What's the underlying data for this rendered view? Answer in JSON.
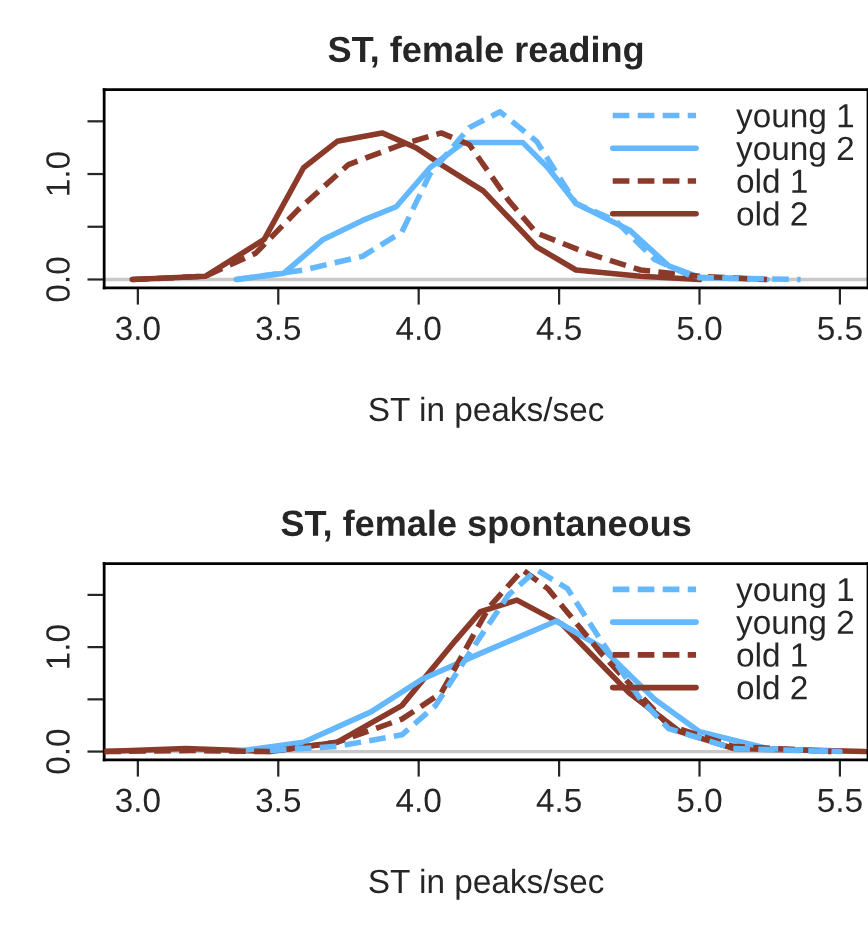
{
  "chart_data": [
    {
      "type": "line",
      "title": "ST, female reading",
      "xlabel": "ST in peaks/sec",
      "xlim": [
        2.88,
        5.6
      ],
      "ylim": [
        -0.08,
        1.8
      ],
      "xticks": [
        {
          "value": 3.0,
          "label": "3.0"
        },
        {
          "value": 3.5,
          "label": "3.5"
        },
        {
          "value": 4.0,
          "label": "4.0"
        },
        {
          "value": 4.5,
          "label": "4.5"
        },
        {
          "value": 5.0,
          "label": "5.0"
        },
        {
          "value": 5.5,
          "label": "5.5"
        }
      ],
      "yticks": [
        {
          "value": 0,
          "label": "0.0"
        },
        {
          "value": 0.5,
          "label": null
        },
        {
          "value": 1.0,
          "label": "1.0"
        },
        {
          "value": 1.5,
          "label": null
        }
      ],
      "legend": "top right",
      "grid": false,
      "ref_lines": [
        {
          "axis": "y",
          "value": 0,
          "label": null,
          "color": "#c8c8c8"
        }
      ],
      "series": [
        {
          "name": "young 1",
          "color": "#63b8ff",
          "line_style": "dashed",
          "x": [
            3.35,
            3.59,
            3.8,
            3.94,
            4.04,
            4.18,
            4.29,
            4.42,
            4.56,
            4.7,
            4.84,
            4.98,
            5.36
          ],
          "values": [
            0.0,
            0.09,
            0.22,
            0.45,
            1.0,
            1.44,
            1.59,
            1.31,
            0.72,
            0.56,
            0.19,
            0.02,
            0.0
          ]
        },
        {
          "name": "young 2",
          "color": "#63b8ff",
          "line_style": "solid",
          "x": [
            3.35,
            3.52,
            3.66,
            3.8,
            3.92,
            4.04,
            4.16,
            4.37,
            4.46,
            4.56,
            4.75,
            4.89,
            5.0,
            5.24
          ],
          "values": [
            0.0,
            0.06,
            0.38,
            0.56,
            0.69,
            1.06,
            1.3,
            1.3,
            1.06,
            0.72,
            0.47,
            0.13,
            0.02,
            0.0
          ]
        },
        {
          "name": "old 1",
          "color": "#8b3a2a",
          "line_style": "dashed",
          "x": [
            2.98,
            3.24,
            3.42,
            3.57,
            3.75,
            3.94,
            4.08,
            4.18,
            4.32,
            4.42,
            4.6,
            4.79,
            5.0,
            5.24
          ],
          "values": [
            0.0,
            0.03,
            0.25,
            0.66,
            1.09,
            1.28,
            1.39,
            1.28,
            0.75,
            0.44,
            0.25,
            0.09,
            0.03,
            0.0
          ]
        },
        {
          "name": "old 2",
          "color": "#8b3a2a",
          "line_style": "solid",
          "x": [
            2.98,
            3.24,
            3.45,
            3.59,
            3.71,
            3.87,
            3.99,
            4.08,
            4.23,
            4.42,
            4.56,
            4.79,
            5.0
          ],
          "values": [
            0.0,
            0.03,
            0.38,
            1.06,
            1.31,
            1.39,
            1.25,
            1.09,
            0.84,
            0.31,
            0.09,
            0.03,
            0.0
          ]
        }
      ]
    },
    {
      "type": "line",
      "title": "ST, female spontaneous",
      "xlabel": "ST in peaks/sec",
      "xlim": [
        2.88,
        5.6
      ],
      "ylim": [
        -0.08,
        1.8
      ],
      "xticks": [
        {
          "value": 3.0,
          "label": "3.0"
        },
        {
          "value": 3.5,
          "label": "3.5"
        },
        {
          "value": 4.0,
          "label": "4.0"
        },
        {
          "value": 4.5,
          "label": "4.5"
        },
        {
          "value": 5.0,
          "label": "5.0"
        },
        {
          "value": 5.5,
          "label": "5.5"
        }
      ],
      "yticks": [
        {
          "value": 0,
          "label": "0.0"
        },
        {
          "value": 0.5,
          "label": null
        },
        {
          "value": 1.0,
          "label": "1.0"
        },
        {
          "value": 1.5,
          "label": null
        }
      ],
      "legend": "top right",
      "grid": false,
      "ref_lines": [
        {
          "axis": "y",
          "value": 0,
          "label": null,
          "color": "#c8c8c8"
        }
      ],
      "series": [
        {
          "name": "young 1",
          "color": "#63b8ff",
          "line_style": "dashed",
          "x": [
            3.47,
            3.71,
            3.94,
            4.06,
            4.18,
            4.32,
            4.42,
            4.53,
            4.65,
            4.79,
            4.89,
            5.12,
            5.47
          ],
          "values": [
            0.01,
            0.05,
            0.16,
            0.44,
            0.94,
            1.5,
            1.74,
            1.56,
            1.06,
            0.5,
            0.22,
            0.03,
            0.0
          ]
        },
        {
          "name": "young 2",
          "color": "#63b8ff",
          "line_style": "solid",
          "x": [
            3.35,
            3.59,
            3.83,
            4.01,
            4.22,
            4.49,
            4.65,
            4.84,
            5.0,
            5.24,
            5.5
          ],
          "values": [
            0.0,
            0.09,
            0.38,
            0.69,
            0.94,
            1.25,
            1.0,
            0.5,
            0.19,
            0.03,
            0.0
          ]
        },
        {
          "name": "old 1",
          "color": "#8b3a2a",
          "line_style": "dashed",
          "x": [
            2.88,
            3.19,
            3.47,
            3.71,
            3.94,
            4.08,
            4.25,
            4.37,
            4.46,
            4.65,
            4.89,
            5.12,
            5.47
          ],
          "values": [
            0.0,
            0.01,
            0.0,
            0.09,
            0.31,
            0.56,
            1.38,
            1.74,
            1.56,
            0.94,
            0.25,
            0.05,
            0.0
          ]
        },
        {
          "name": "old 2",
          "color": "#8b3a2a",
          "line_style": "solid",
          "x": [
            2.88,
            3.17,
            3.47,
            3.71,
            3.94,
            4.13,
            4.22,
            4.35,
            4.51,
            4.75,
            4.93,
            5.12,
            5.59
          ],
          "values": [
            0.0,
            0.03,
            0.0,
            0.09,
            0.44,
            1.06,
            1.34,
            1.45,
            1.22,
            0.56,
            0.19,
            0.03,
            0.0
          ]
        }
      ]
    }
  ]
}
